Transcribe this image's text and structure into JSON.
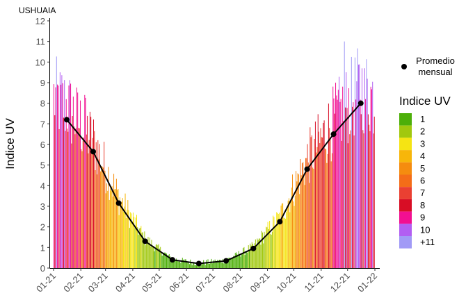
{
  "chart_data": {
    "type": "bar",
    "title": "USHUAIA",
    "ylabel": "Indice UV",
    "xlabel": "",
    "ylim": [
      0,
      12
    ],
    "y_ticks": [
      0,
      1,
      2,
      3,
      4,
      5,
      6,
      7,
      8,
      9,
      10,
      11,
      12
    ],
    "x_ticks": [
      "01-21",
      "02-21",
      "03-21",
      "04-21",
      "05-21",
      "06-21",
      "07-21",
      "08-21",
      "09-21",
      "10-21",
      "11-21",
      "12-21",
      "01-22"
    ],
    "x_range_days": [
      0,
      365
    ],
    "grid": false,
    "series": [
      {
        "name": "Promedio mensual",
        "type": "line+points",
        "color": "#000000",
        "x": [
          "2021-01-16",
          "2021-02-15",
          "2021-03-16",
          "2021-04-15",
          "2021-05-16",
          "2021-06-15",
          "2021-07-16",
          "2021-08-16",
          "2021-09-15",
          "2021-10-16",
          "2021-11-15",
          "2021-12-16"
        ],
        "values": [
          7.2,
          5.65,
          3.15,
          1.3,
          0.4,
          0.22,
          0.35,
          0.95,
          2.25,
          4.8,
          6.5,
          8.0
        ]
      }
    ],
    "daily_bars": {
      "description": "Daily maximum UV index, coloured by UV category",
      "approx_peaks": [
        {
          "date": "2021-01-08",
          "value": 9.5
        },
        {
          "date": "2021-02-05",
          "value": 8.4
        },
        {
          "date": "2021-11-27",
          "value": 11.0
        },
        {
          "date": "2021-12-20",
          "value": 9.7
        }
      ]
    },
    "legend": {
      "position": "right",
      "point_label": "Promedio mensual",
      "title": "Indice UV",
      "items": [
        {
          "label": "1",
          "color": "#4daf09"
        },
        {
          "label": "2",
          "color": "#a1c80e"
        },
        {
          "label": "3",
          "color": "#f5e413"
        },
        {
          "label": "4",
          "color": "#f7b60a"
        },
        {
          "label": "5",
          "color": "#f58c0f"
        },
        {
          "label": "6",
          "color": "#f46d18"
        },
        {
          "label": "7",
          "color": "#ea4032"
        },
        {
          "label": "8",
          "color": "#d80d25"
        },
        {
          "label": "9",
          "color": "#f20f91"
        },
        {
          "label": "10",
          "color": "#b25ef2"
        },
        {
          "label": "+11",
          "color": "#a19af6"
        }
      ]
    }
  }
}
